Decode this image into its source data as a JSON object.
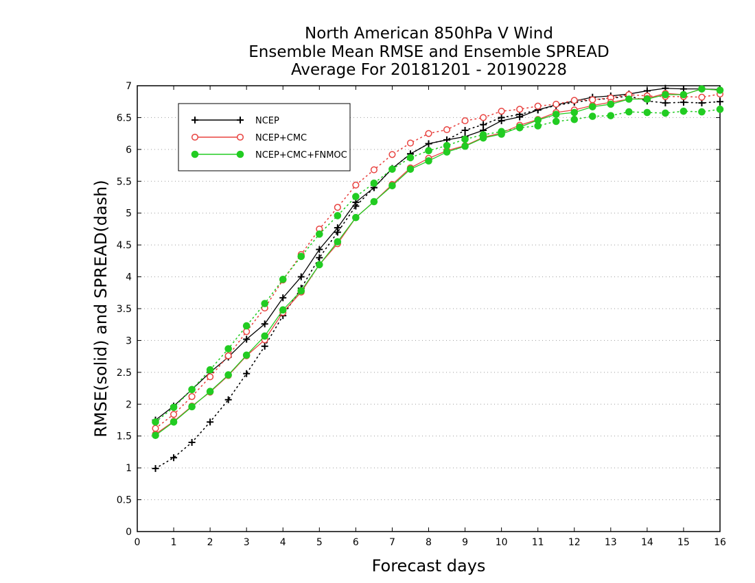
{
  "chart_data": {
    "type": "line",
    "title": [
      "North American 850hPa V Wind",
      "Ensemble Mean RMSE and Ensemble SPREAD",
      "Average For 20181201 - 20190228"
    ],
    "xlabel": "Forecast days",
    "ylabel": "RMSE(solid) and SPREAD(dash)",
    "xlim": [
      0,
      16
    ],
    "ylim": [
      0,
      7
    ],
    "xticks": [
      "0",
      "1",
      "2",
      "3",
      "4",
      "5",
      "6",
      "7",
      "8",
      "9",
      "10",
      "11",
      "12",
      "13",
      "14",
      "15",
      "16"
    ],
    "yticks": [
      "0",
      "0.5",
      "1",
      "1.5",
      "2",
      "2.5",
      "3",
      "3.5",
      "4",
      "4.5",
      "5",
      "5.5",
      "6",
      "6.5",
      "7"
    ],
    "grid": true,
    "legend_position": "top-left",
    "x": [
      0.5,
      1,
      1.5,
      2,
      2.5,
      3,
      3.5,
      4,
      4.5,
      5,
      5.5,
      6,
      6.5,
      7,
      7.5,
      8,
      8.5,
      9,
      9.5,
      10,
      10.5,
      11,
      11.5,
      12,
      12.5,
      13,
      13.5,
      14,
      14.5,
      15,
      15.5,
      16
    ],
    "series": [
      {
        "name": "NCEP",
        "marker": "plus",
        "color": "#000000",
        "rmse": [
          1.75,
          1.97,
          2.23,
          2.5,
          2.74,
          3.02,
          3.26,
          3.67,
          4.0,
          4.43,
          4.77,
          5.17,
          5.4,
          5.7,
          5.93,
          6.09,
          6.15,
          6.2,
          6.3,
          6.45,
          6.51,
          6.62,
          6.7,
          6.76,
          6.82,
          6.84,
          6.87,
          6.92,
          6.96,
          6.95,
          6.95,
          6.94
        ],
        "spread": [
          0.99,
          1.16,
          1.4,
          1.72,
          2.07,
          2.48,
          2.91,
          3.39,
          3.82,
          4.3,
          4.7,
          5.11,
          5.4,
          5.7,
          5.93,
          6.09,
          6.15,
          6.3,
          6.39,
          6.5,
          6.55,
          6.62,
          6.69,
          6.74,
          6.78,
          6.8,
          6.84,
          6.76,
          6.73,
          6.74,
          6.73,
          6.75
        ]
      },
      {
        "name": "NCEP+CMC",
        "marker": "open-circle",
        "color": "#e8423f",
        "rmse": [
          1.53,
          1.73,
          1.97,
          2.19,
          2.45,
          2.76,
          3.01,
          3.44,
          3.76,
          4.19,
          4.52,
          4.93,
          5.18,
          5.45,
          5.71,
          5.86,
          5.98,
          6.06,
          6.19,
          6.26,
          6.38,
          6.47,
          6.58,
          6.62,
          6.69,
          6.74,
          6.79,
          6.8,
          6.88,
          6.86,
          6.95,
          6.93
        ],
        "spread": [
          1.62,
          1.84,
          2.12,
          2.43,
          2.76,
          3.14,
          3.51,
          3.95,
          4.35,
          4.75,
          5.09,
          5.44,
          5.68,
          5.92,
          6.1,
          6.25,
          6.31,
          6.45,
          6.5,
          6.6,
          6.63,
          6.68,
          6.71,
          6.77,
          6.78,
          6.81,
          6.86,
          6.84,
          6.83,
          6.83,
          6.82,
          6.87
        ]
      },
      {
        "name": "NCEP+CMC+FNMOC",
        "marker": "filled-circle",
        "color": "#22cc22",
        "rmse": [
          1.51,
          1.72,
          1.96,
          2.2,
          2.46,
          2.77,
          3.07,
          3.48,
          3.78,
          4.19,
          4.55,
          4.93,
          5.18,
          5.43,
          5.69,
          5.82,
          5.96,
          6.05,
          6.18,
          6.24,
          6.35,
          6.46,
          6.55,
          6.58,
          6.67,
          6.71,
          6.79,
          6.79,
          6.86,
          6.86,
          6.95,
          6.93
        ],
        "spread": [
          1.72,
          1.95,
          2.23,
          2.54,
          2.87,
          3.23,
          3.58,
          3.96,
          4.32,
          4.67,
          4.96,
          5.26,
          5.47,
          5.69,
          5.87,
          5.98,
          6.06,
          6.16,
          6.23,
          6.28,
          6.34,
          6.37,
          6.44,
          6.47,
          6.52,
          6.53,
          6.59,
          6.58,
          6.57,
          6.6,
          6.59,
          6.63
        ]
      }
    ]
  }
}
